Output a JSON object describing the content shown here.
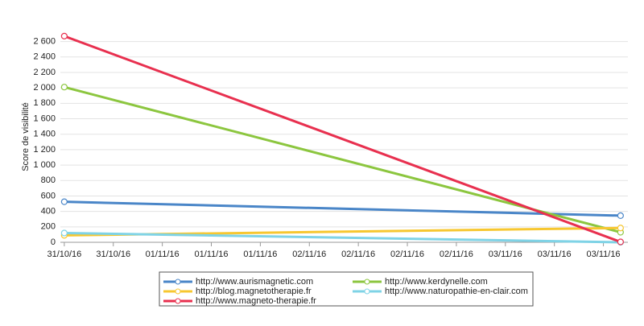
{
  "chart_data": {
    "type": "line",
    "y_label": "Score de visibilité",
    "x": [
      0,
      11.35
    ],
    "xlim": [
      -0.08,
      11.5
    ],
    "xticks": [
      {
        "value": 0,
        "label": "31/10/16"
      },
      {
        "value": 1,
        "label": "31/10/16"
      },
      {
        "value": 2,
        "label": "01/11/16"
      },
      {
        "value": 3,
        "label": "01/11/16"
      },
      {
        "value": 4,
        "label": "01/11/16"
      },
      {
        "value": 5,
        "label": "02/11/16"
      },
      {
        "value": 6,
        "label": "02/11/16"
      },
      {
        "value": 7,
        "label": "02/11/16"
      },
      {
        "value": 8,
        "label": "02/11/16"
      },
      {
        "value": 9,
        "label": "03/11/16"
      },
      {
        "value": 10,
        "label": "03/11/16"
      },
      {
        "value": 11,
        "label": "03/11/16"
      }
    ],
    "ylim": [
      0,
      2700
    ],
    "yticks": [
      0,
      200,
      400,
      600,
      800,
      {
        "value": 1000,
        "label": "1 000"
      },
      {
        "value": 1200,
        "label": "1 200"
      },
      {
        "value": 1400,
        "label": "1 400"
      },
      {
        "value": 1600,
        "label": "1 600"
      },
      {
        "value": 1800,
        "label": "1 800"
      },
      {
        "value": 2000,
        "label": "2 000"
      },
      {
        "value": 2200,
        "label": "2 200"
      },
      {
        "value": 2400,
        "label": "2 400"
      },
      {
        "value": 2600,
        "label": "2 600"
      }
    ],
    "grid": true,
    "series": [
      {
        "name": "http://www.aurismagnetic.com",
        "color": "#4a86c8",
        "values": [
          525,
          345
        ]
      },
      {
        "name": "http://www.kerdynelle.com",
        "color": "#8cc63f",
        "values": [
          2010,
          130
        ]
      },
      {
        "name": "http://blog.magnetotherapie.fr",
        "color": "#f7c730",
        "values": [
          90,
          185
        ]
      },
      {
        "name": "http://www.naturopathie-en-clair.com",
        "color": "#7fd3e6",
        "values": [
          120,
          0
        ]
      },
      {
        "name": "http://www.magneto-therapie.fr",
        "color": "#e8304f",
        "values": [
          2670,
          5
        ]
      }
    ]
  }
}
